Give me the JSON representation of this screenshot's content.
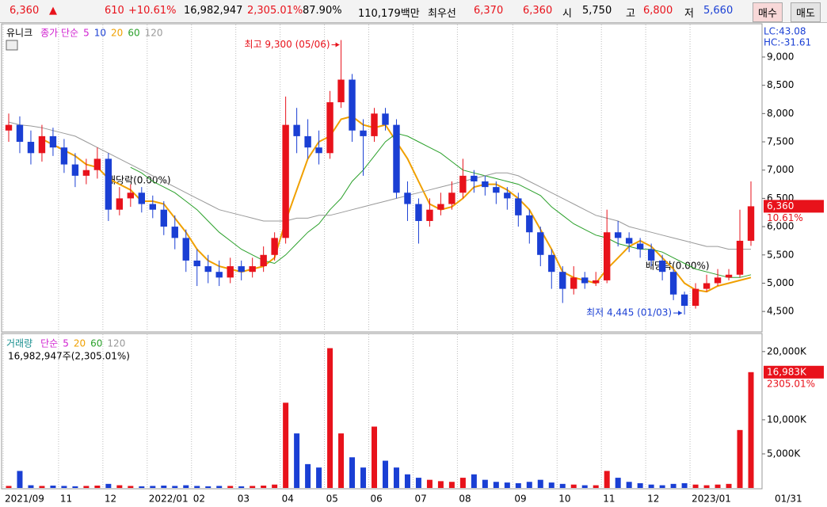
{
  "header": {
    "price": "6,360",
    "arrow": "▲",
    "change": "610",
    "change_pct": "+10.61%",
    "volume": "16,982,947",
    "volume_pct": "2,305.01%",
    "rate": "87.90%",
    "amount": "110,179백만",
    "best_label": "최우선",
    "best_ask": "6,370",
    "best_bid": "6,360",
    "open_label": "시",
    "open": "5,750",
    "high_label": "고",
    "high": "6,800",
    "low_label": "저",
    "low": "5,660",
    "buy": "매수",
    "sell": "매도"
  },
  "chart_data": [
    {
      "type": "candlestick",
      "title": "유니크",
      "ma_label": "종가 단순",
      "ma_legend": [
        {
          "label": "5",
          "color": "#d020d0"
        },
        {
          "label": "10",
          "color": "#1a3fd4"
        },
        {
          "label": "20",
          "color": "#f0a000"
        },
        {
          "label": "60",
          "color": "#2aa02a"
        },
        {
          "label": "120",
          "color": "#999999"
        }
      ],
      "indicators": [
        "LC:43.08",
        "HC:-31.61"
      ],
      "up_color": "#e8121b",
      "down_color": "#1a3fd4",
      "open": [
        7700,
        7800,
        7500,
        7300,
        7600,
        7400,
        7100,
        6900,
        7000,
        7200,
        6300,
        6500,
        6600,
        6400,
        6300,
        6000,
        5800,
        5400,
        5300,
        5200,
        5100,
        5300,
        5200,
        5300,
        5500,
        5800,
        7800,
        7600,
        7400,
        7300,
        8200,
        8600,
        7700,
        7600,
        8000,
        7800,
        6600,
        6400,
        6100,
        6300,
        6400,
        6600,
        6900,
        6800,
        6700,
        6600,
        6500,
        6200,
        5900,
        5500,
        5200,
        4900,
        5100,
        5000,
        5050,
        5900,
        5800,
        5700,
        5600,
        5400,
        5200,
        4800,
        4600,
        4900,
        5000,
        5100,
        5150,
        5750
      ],
      "high": [
        8000,
        7950,
        7700,
        7800,
        7750,
        7550,
        7300,
        7200,
        7400,
        7300,
        6700,
        6750,
        6700,
        6550,
        6450,
        6200,
        5950,
        5600,
        5500,
        5400,
        5450,
        5400,
        5450,
        5650,
        5900,
        8300,
        8100,
        7900,
        7700,
        8400,
        9300,
        8700,
        7900,
        8100,
        8100,
        7900,
        6800,
        6500,
        6500,
        6600,
        6800,
        7200,
        7000,
        6900,
        6800,
        6700,
        6600,
        6300,
        6000,
        5600,
        5300,
        5300,
        5200,
        5200,
        6300,
        6100,
        5900,
        5800,
        5700,
        5500,
        5250,
        4850,
        5000,
        5150,
        5250,
        5250,
        6300,
        6800
      ],
      "low": [
        7500,
        7300,
        7100,
        7150,
        7250,
        6950,
        6700,
        6750,
        6850,
        6100,
        6200,
        6350,
        6250,
        6150,
        5850,
        5600,
        5200,
        4950,
        5000,
        4950,
        5000,
        5050,
        5100,
        5200,
        5400,
        5700,
        7300,
        7200,
        7100,
        7200,
        8100,
        7500,
        6900,
        7500,
        7700,
        6500,
        6100,
        5700,
        6000,
        6200,
        6300,
        6500,
        6600,
        6550,
        6400,
        6300,
        6000,
        5700,
        5300,
        4900,
        4650,
        4800,
        4900,
        4950,
        5000,
        5650,
        5550,
        5450,
        5300,
        5050,
        4700,
        4445,
        4550,
        4850,
        4950,
        5050,
        5100,
        5660
      ],
      "close": [
        7800,
        7500,
        7300,
        7600,
        7400,
        7100,
        6900,
        7000,
        7200,
        6300,
        6500,
        6600,
        6400,
        6300,
        6000,
        5800,
        5400,
        5300,
        5200,
        5100,
        5300,
        5200,
        5300,
        5500,
        5800,
        7800,
        7600,
        7400,
        7300,
        8200,
        8600,
        7700,
        7600,
        8000,
        7800,
        6600,
        6400,
        6100,
        6300,
        6400,
        6600,
        6900,
        6800,
        6700,
        6600,
        6500,
        6200,
        5900,
        5500,
        5200,
        4900,
        5100,
        5000,
        5050,
        5900,
        5800,
        5700,
        5600,
        5400,
        5200,
        4800,
        4600,
        4900,
        5000,
        5100,
        5150,
        5750,
        6360
      ],
      "series": [
        {
          "color": "#f0a000",
          "values": [
            null,
            null,
            null,
            7550,
            7450,
            7350,
            7250,
            7100,
            7050,
            6850,
            6750,
            6650,
            6450,
            6450,
            6400,
            6150,
            5900,
            5600,
            5400,
            5300,
            5250,
            5200,
            5250,
            5300,
            5450,
            6100,
            6650,
            7200,
            7500,
            7600,
            7900,
            7950,
            7800,
            7750,
            7800,
            7500,
            7200,
            6800,
            6400,
            6300,
            6350,
            6500,
            6700,
            6750,
            6750,
            6650,
            6500,
            6300,
            5950,
            5600,
            5200,
            5100,
            5050,
            5000,
            5250,
            5450,
            5650,
            5750,
            5650,
            5450,
            5250,
            5000,
            4880,
            4850,
            4950,
            5000,
            5050,
            5100
          ]
        },
        {
          "color": "#2aa02a",
          "values": [
            null,
            null,
            null,
            null,
            null,
            null,
            null,
            null,
            null,
            null,
            null,
            7050,
            6950,
            6800,
            6700,
            6600,
            6450,
            6300,
            6100,
            5900,
            5750,
            5600,
            5500,
            5400,
            5350,
            5500,
            5700,
            5900,
            6050,
            6300,
            6500,
            6800,
            7000,
            7250,
            7500,
            7650,
            7600,
            7500,
            7400,
            7300,
            7150,
            7000,
            6950,
            6900,
            6850,
            6800,
            6750,
            6650,
            6550,
            6350,
            6200,
            6050,
            5950,
            5850,
            5800,
            5700,
            5650,
            5600,
            5600,
            5550,
            5450,
            5350,
            5250,
            5200,
            5150,
            5100,
            5100,
            5150
          ]
        },
        {
          "color": "#999999",
          "values": [
            7850,
            7800,
            7780,
            7750,
            7700,
            7650,
            7600,
            7500,
            7400,
            7300,
            7200,
            7100,
            7000,
            6900,
            6800,
            6700,
            6600,
            6500,
            6400,
            6300,
            6250,
            6200,
            6150,
            6100,
            6100,
            6100,
            6150,
            6150,
            6200,
            6200,
            6250,
            6300,
            6350,
            6400,
            6450,
            6500,
            6550,
            6600,
            6650,
            6700,
            6750,
            6800,
            6850,
            6900,
            6950,
            6950,
            6900,
            6800,
            6700,
            6600,
            6500,
            6400,
            6300,
            6200,
            6150,
            6100,
            6000,
            5950,
            5900,
            5850,
            5800,
            5750,
            5700,
            5650,
            5650,
            5600,
            5600,
            5600
          ]
        }
      ],
      "annotations": {
        "high": "최고 9,300 (05/06)",
        "low": "최저 4,445 (01/03)",
        "dividend": [
          "배당락(0.00%)",
          "배당락(0.00%)"
        ]
      },
      "last_price_label": "6,360",
      "last_change_label": "10.61%",
      "ylim": [
        4180,
        9560
      ],
      "yticks": [
        {
          "value": 4500,
          "label": "4,500"
        },
        {
          "value": 5000,
          "label": "5,000"
        },
        {
          "value": 5500,
          "label": "5,500"
        },
        {
          "value": 6000,
          "label": "6,000"
        },
        {
          "value": 6500,
          "label": "6,500"
        },
        {
          "value": 7000,
          "label": "7,000"
        },
        {
          "value": 7500,
          "label": "7,500"
        },
        {
          "value": 8000,
          "label": "8,000"
        },
        {
          "value": 8500,
          "label": "8,500"
        },
        {
          "value": 9000,
          "label": "9,000"
        }
      ],
      "xticks": [
        {
          "value": 0,
          "label": "2021/09"
        },
        {
          "value": 5,
          "label": "11"
        },
        {
          "value": 9,
          "label": "12"
        },
        {
          "value": 13,
          "label": "2022/01"
        },
        {
          "value": 17,
          "label": "02"
        },
        {
          "value": 21,
          "label": "03"
        },
        {
          "value": 25,
          "label": "04"
        },
        {
          "value": 29,
          "label": "05"
        },
        {
          "value": 33,
          "label": "06"
        },
        {
          "value": 37,
          "label": "07"
        },
        {
          "value": 41,
          "label": "08"
        },
        {
          "value": 46,
          "label": "09"
        },
        {
          "value": 50,
          "label": "10"
        },
        {
          "value": 54,
          "label": "11"
        },
        {
          "value": 58,
          "label": "12"
        },
        {
          "value": 62,
          "label": "2023/01"
        }
      ],
      "last_date": "01/31"
    },
    {
      "type": "bar",
      "title": "거래량",
      "ma_label": "단순",
      "ma_legend": [
        {
          "label": "5",
          "color": "#d020d0"
        },
        {
          "label": "20",
          "color": "#f0a000"
        },
        {
          "label": "60",
          "color": "#2aa02a"
        },
        {
          "label": "120",
          "color": "#999999"
        }
      ],
      "summary": "16,982,947주(2,305.01%)",
      "values": [
        300,
        2500,
        400,
        300,
        350,
        300,
        250,
        300,
        350,
        600,
        400,
        300,
        250,
        300,
        350,
        300,
        400,
        300,
        250,
        300,
        300,
        250,
        300,
        350,
        500,
        12500,
        8000,
        3500,
        3000,
        20500,
        8000,
        4500,
        3000,
        9000,
        4000,
        3000,
        2000,
        1500,
        1200,
        1000,
        900,
        1500,
        2000,
        1200,
        900,
        800,
        700,
        900,
        1200,
        800,
        600,
        500,
        400,
        400,
        2500,
        1500,
        900,
        700,
        500,
        400,
        600,
        700,
        500,
        400,
        500,
        600,
        8500,
        16983
      ],
      "last_label": "16,983K",
      "last_pct_label": "2305.01%",
      "ylim": [
        0,
        22300
      ],
      "yticks": [
        {
          "value": 5000,
          "label": "5,000K"
        },
        {
          "value": 10000,
          "label": "10,000K"
        },
        {
          "value": 20000,
          "label": "20,000K"
        }
      ]
    }
  ]
}
